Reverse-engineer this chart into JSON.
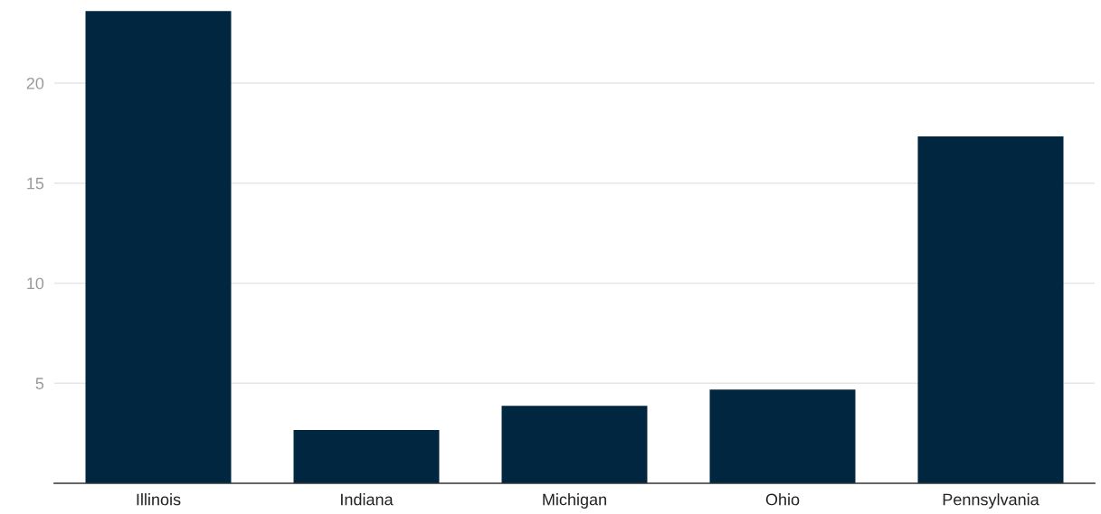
{
  "chart_data": {
    "type": "bar",
    "categories": [
      "Illinois",
      "Indiana",
      "Michigan",
      "Ohio",
      "Pennsylvania"
    ],
    "values": [
      23.6,
      2.66,
      3.87,
      4.68,
      17.34
    ],
    "color": "#01263f",
    "ylim": [
      0,
      23.7
    ],
    "yticks": [
      5,
      10,
      15,
      20
    ],
    "grid": "y"
  }
}
